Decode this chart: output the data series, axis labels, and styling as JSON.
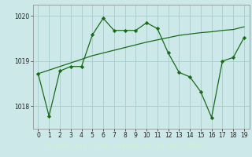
{
  "x": [
    0,
    1,
    2,
    3,
    4,
    5,
    6,
    7,
    8,
    9,
    10,
    11,
    12,
    13,
    14,
    15,
    16,
    17,
    18,
    19
  ],
  "y_main": [
    1018.72,
    1017.78,
    1018.78,
    1018.88,
    1018.88,
    1019.58,
    1019.95,
    1019.68,
    1019.68,
    1019.68,
    1019.85,
    1019.72,
    1019.18,
    1018.75,
    1018.65,
    1018.32,
    1017.75,
    1019.0,
    1019.08,
    1019.52
  ],
  "y_trend": [
    1018.72,
    1018.8,
    1018.88,
    1018.96,
    1019.04,
    1019.12,
    1019.18,
    1019.24,
    1019.3,
    1019.36,
    1019.42,
    1019.47,
    1019.52,
    1019.57,
    1019.6,
    1019.63,
    1019.65,
    1019.68,
    1019.7,
    1019.76
  ],
  "line_color": "#1a6b1a",
  "bg_color": "#cce8e8",
  "grid_color": "#aacccc",
  "xlabel": "Graphe pression niveau de la mer (hPa)",
  "xlabel_bg": "#2d6b2d",
  "xlabel_color": "#d0f0d0",
  "ylim": [
    1017.5,
    1020.25
  ],
  "yticks": [
    1018,
    1019,
    1020
  ],
  "xticks": [
    0,
    1,
    2,
    3,
    4,
    5,
    6,
    7,
    8,
    9,
    10,
    11,
    12,
    13,
    14,
    15,
    16,
    17,
    18,
    19
  ]
}
